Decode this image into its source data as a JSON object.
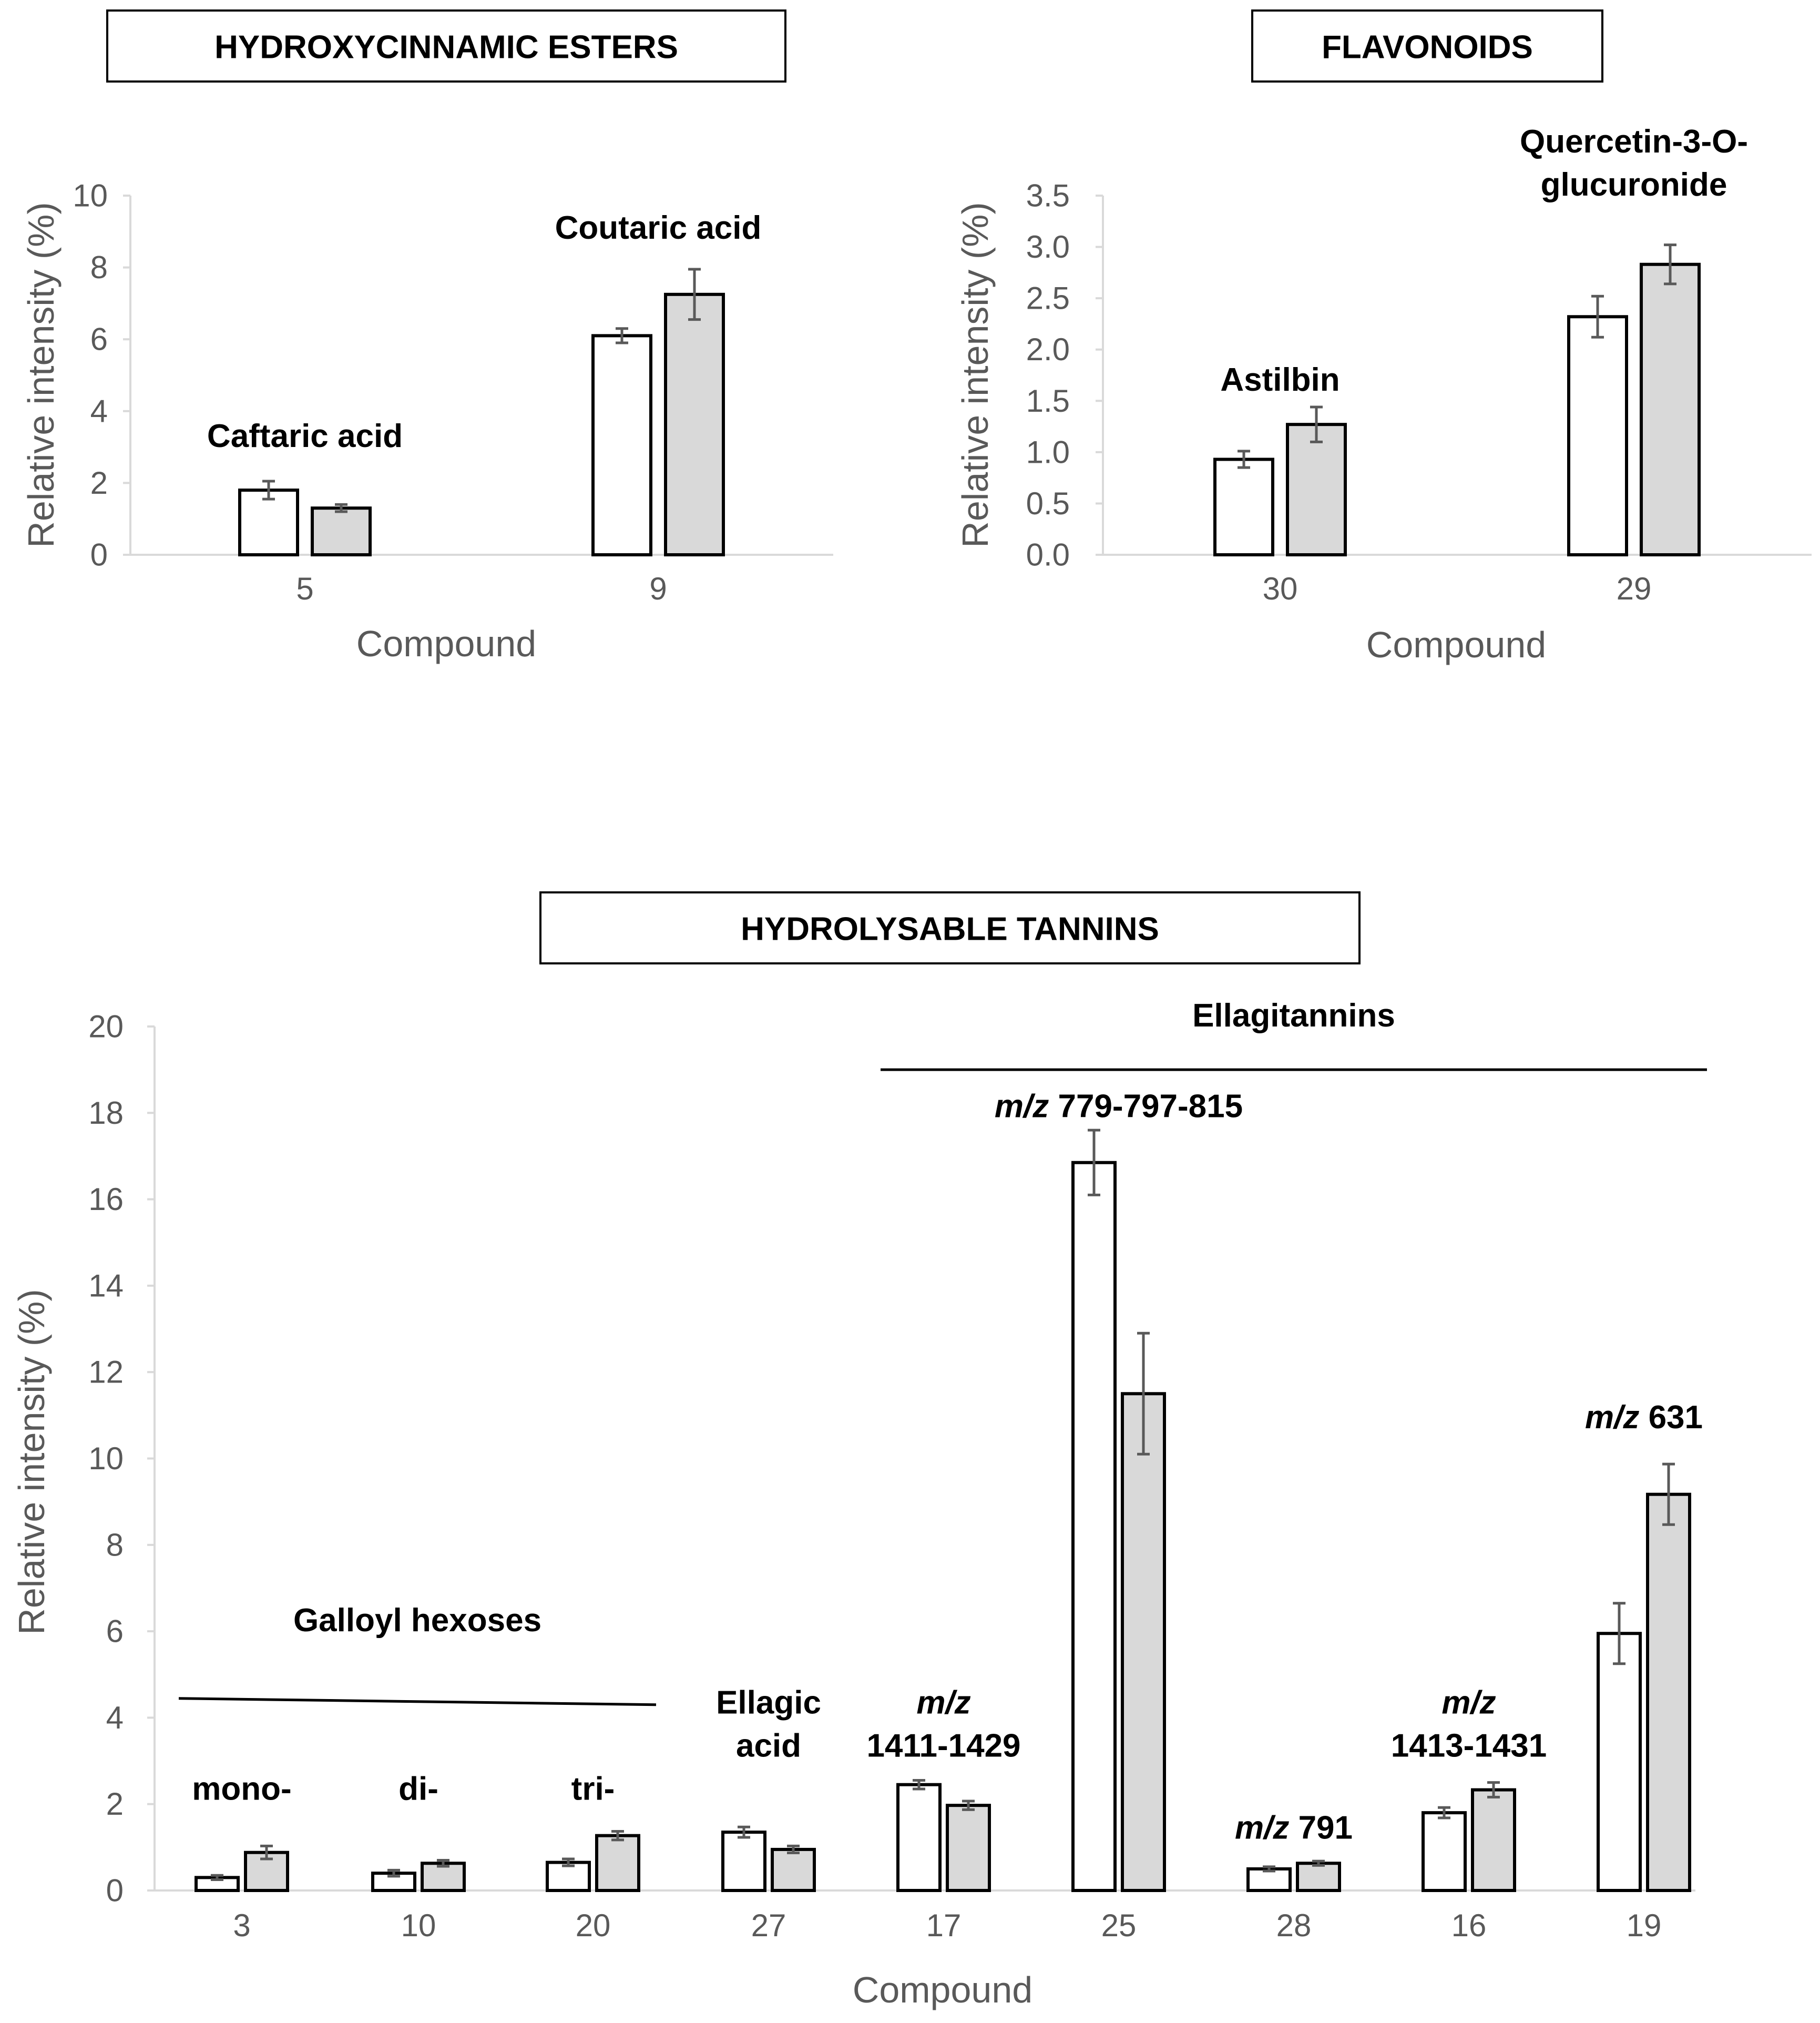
{
  "chart_data": [
    {
      "type": "bar",
      "title": "HYDROXYCINNAMIC ESTERS",
      "xlabel": "Compound",
      "ylabel": "Relative intensity (%)",
      "ylim": [
        0,
        10
      ],
      "yticks": [
        "0",
        "2",
        "4",
        "6",
        "8",
        "10"
      ],
      "categories": [
        "5",
        "9"
      ],
      "series": [
        {
          "name": "white",
          "color": "#ffffff",
          "values": [
            1.8,
            6.1
          ],
          "errors": [
            0.25,
            0.2
          ]
        },
        {
          "name": "grey",
          "color": "#d9d9d9",
          "values": [
            1.3,
            7.25
          ],
          "errors": [
            0.1,
            0.7
          ]
        }
      ],
      "annotations": [
        {
          "category": "5",
          "lines": [
            "Caftaric acid"
          ],
          "y": 3.0
        },
        {
          "category": "9",
          "lines": [
            "Coutaric acid"
          ],
          "y": 8.8
        }
      ]
    },
    {
      "type": "bar",
      "title": "FLAVONOIDS",
      "xlabel": "Compound",
      "ylabel": "Relative intensity (%)",
      "ylim": [
        0,
        3.5
      ],
      "yticks": [
        "0.0",
        "0.5",
        "1.0",
        "1.5",
        "2.0",
        "2.5",
        "3.0",
        "3.5"
      ],
      "categories": [
        "30",
        "29"
      ],
      "series": [
        {
          "name": "white",
          "color": "#ffffff",
          "values": [
            0.93,
            2.32
          ],
          "errors": [
            0.08,
            0.2
          ]
        },
        {
          "name": "grey",
          "color": "#d9d9d9",
          "values": [
            1.27,
            2.83
          ],
          "errors": [
            0.17,
            0.19
          ]
        }
      ],
      "annotations": [
        {
          "category": "30",
          "lines": [
            "Astilbin"
          ],
          "y": 1.6
        },
        {
          "category": "29",
          "lines": [
            "Quercetin-3-O-",
            "glucuronide"
          ],
          "y": 3.5
        }
      ]
    },
    {
      "type": "bar",
      "title": "HYDROLYSABLE TANNINS",
      "xlabel": "Compound",
      "ylabel": "Relative intensity (%)",
      "ylim": [
        0,
        20
      ],
      "yticks": [
        "0",
        "2",
        "4",
        "6",
        "8",
        "10",
        "12",
        "14",
        "16",
        "18",
        "20"
      ],
      "categories": [
        "3",
        "10",
        "20",
        "27",
        "17",
        "25",
        "28",
        "16",
        "19"
      ],
      "series": [
        {
          "name": "white",
          "color": "#ffffff",
          "values": [
            0.3,
            0.4,
            0.65,
            1.35,
            2.45,
            16.85,
            0.5,
            1.8,
            5.95
          ],
          "errors": [
            0.05,
            0.07,
            0.08,
            0.12,
            0.1,
            0.75,
            0.05,
            0.12,
            0.7
          ]
        },
        {
          "name": "grey",
          "color": "#d9d9d9",
          "values": [
            0.88,
            0.63,
            1.27,
            0.95,
            1.97,
            11.5,
            0.63,
            2.33,
            9.17
          ],
          "errors": [
            0.15,
            0.07,
            0.1,
            0.08,
            0.1,
            1.4,
            0.05,
            0.17,
            0.7
          ]
        }
      ],
      "annotations": [
        {
          "category": "3",
          "lines": [
            "mono-"
          ],
          "y": 2.1
        },
        {
          "category": "10",
          "lines": [
            "di-"
          ],
          "y": 2.1
        },
        {
          "category": "20",
          "lines": [
            "tri-"
          ],
          "y": 2.1
        },
        {
          "category": "27",
          "lines": [
            "Ellagic",
            "acid"
          ],
          "y": 3.1
        },
        {
          "category": "17",
          "lines": [
            "m/z",
            "1411-1429"
          ],
          "y": 3.1
        },
        {
          "category": "25",
          "lines": [
            "m/z 779-797-815"
          ],
          "y": 17.9
        },
        {
          "category": "28",
          "lines": [
            "m/z 791"
          ],
          "y": 1.2
        },
        {
          "category": "16",
          "lines": [
            "m/z",
            "1413-1431"
          ],
          "y": 3.1
        },
        {
          "category": "19",
          "lines": [
            "m/z 631"
          ],
          "y": 10.7
        }
      ],
      "groups": [
        {
          "label": "Galloyl hexoses",
          "from": "3",
          "to": "20",
          "line_y": 4.3,
          "label_y": 6.0
        },
        {
          "label": "Ellagitannins",
          "from": "17",
          "to": "19",
          "line_y": 19.0,
          "label_y": 20.0
        }
      ]
    }
  ]
}
